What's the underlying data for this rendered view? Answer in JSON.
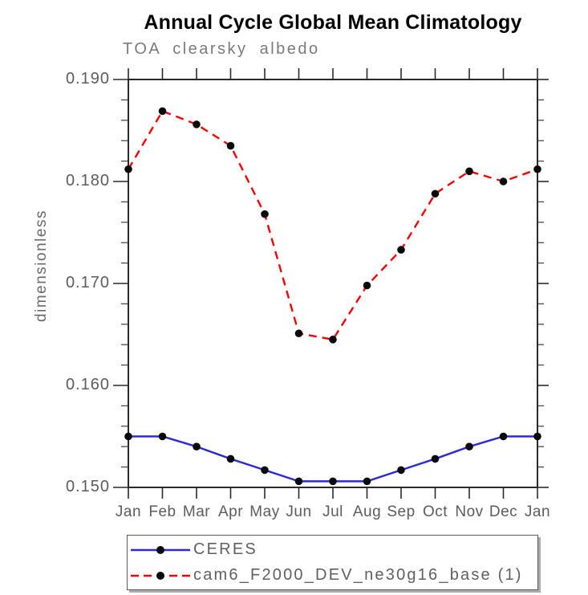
{
  "header": {
    "title": "Annual Cycle Global Mean Climatology",
    "subtitle": "TOA clearsky albedo"
  },
  "colors": {
    "ceres_line": "#2b2bd5",
    "model_line": "#f80000",
    "marker": "#0a0a0a",
    "axis": "#2a2a2a",
    "gray_text": "#5c5c5c"
  },
  "chart_data": {
    "type": "line",
    "title": "Annual Cycle Global Mean Climatology",
    "subtitle": "TOA clearsky albedo",
    "xlabel": "",
    "ylabel": "dimensionless",
    "x_tick_labels": [
      "Jan",
      "Feb",
      "Mar",
      "Apr",
      "May",
      "Jun",
      "Jul",
      "Aug",
      "Sep",
      "Oct",
      "Nov",
      "Dec",
      "Jan"
    ],
    "y_ticks": [
      0.15,
      0.16,
      0.17,
      0.18,
      0.19
    ],
    "y_tick_labels": [
      "0.150",
      "0.160",
      "0.170",
      "0.180",
      "0.190"
    ],
    "y_minor_step": 0.002,
    "ylim": [
      0.15,
      0.19
    ],
    "grid": false,
    "legend_position": "bottom",
    "series": [
      {
        "name": "CERES",
        "color": "#2b2bd5",
        "style": "solid",
        "marker": "circle",
        "values": [
          0.155,
          0.155,
          0.154,
          0.1528,
          0.1517,
          0.1506,
          0.1506,
          0.1506,
          0.1517,
          0.1528,
          0.154,
          0.155,
          0.155
        ]
      },
      {
        "name": "cam6_F2000_DEV_ne30g16_base (1)",
        "color": "#f80000",
        "style": "dashed",
        "marker": "circle",
        "values": [
          0.1812,
          0.1869,
          0.1856,
          0.1835,
          0.1768,
          0.1651,
          0.1645,
          0.1698,
          0.1733,
          0.1788,
          0.181,
          0.18,
          0.1812
        ]
      }
    ]
  }
}
